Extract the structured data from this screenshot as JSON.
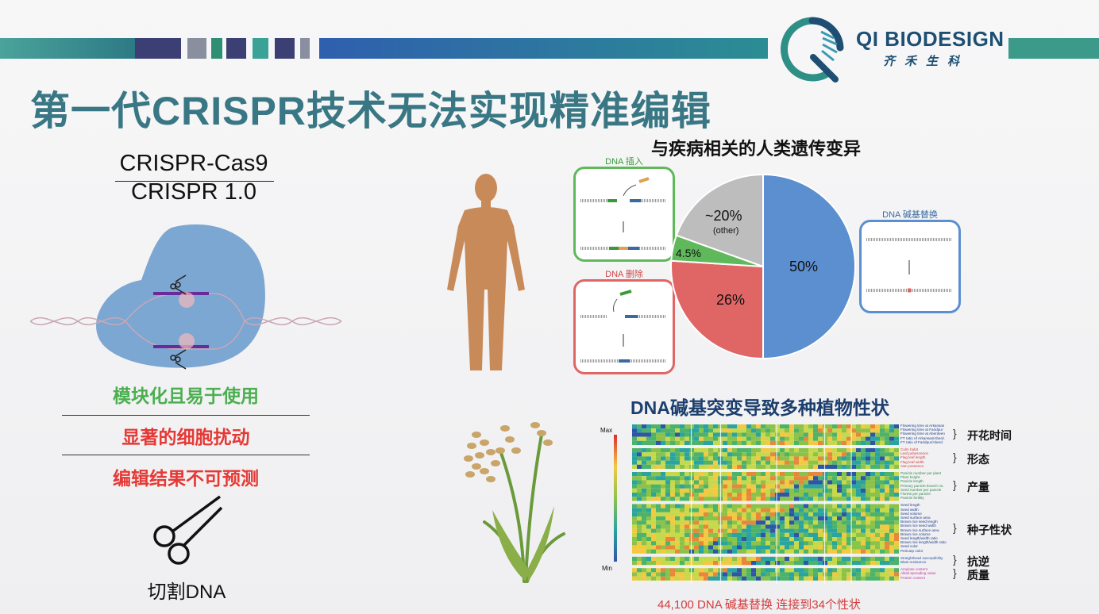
{
  "slide": {
    "title": "第一代CRISPR技术无法实现精准编辑"
  },
  "logo": {
    "name": "QI BIODESIGN",
    "chinese": "齐禾生科"
  },
  "left": {
    "numerator": "CRISPR-Cas9",
    "denominator": "CRISPR 1.0",
    "features": [
      {
        "text": "模块化且易于使用",
        "color": "#4caf50"
      },
      {
        "text": "显著的细胞扰动",
        "color": "#e53935"
      },
      {
        "text": "编辑结果不可预测",
        "color": "#e53935"
      }
    ],
    "scissors_caption": "切割DNA"
  },
  "disease": {
    "title": "与疾病相关的人类遗传变异",
    "insertion_label": "DNA 插入",
    "deletion_label": "DNA 删除",
    "substitution_label": "DNA 碱基替换",
    "colors": {
      "insertion": "#5fb85a",
      "deletion": "#e06666",
      "substitution": "#5b8fd0",
      "other": "#bdbdbd"
    }
  },
  "plant": {
    "title": "DNA碱基突变导致多种植物性状",
    "caption": "44,100 DNA 碱基替换 连接到34个性状",
    "scale_max": "Max",
    "scale_min": "Min",
    "traits": [
      {
        "label": "开花时间",
        "rows": [
          "Flowering time at Arkansas",
          "Flowering time at Faridpur",
          "Flowering time at Aberdeen",
          "FT ratio of Arkansas/Aberd.",
          "FT ratio of Faridpur/Aberd."
        ]
      },
      {
        "label": "形态",
        "rows": [
          "Culm habit",
          "Leaf pubescence",
          "Flag leaf length",
          "Flag leaf width",
          "Awn presence"
        ]
      },
      {
        "label": "产量",
        "rows": [
          "Panicle number per plant",
          "Plant height",
          "Panicle length",
          "Primary panicle branch no.",
          "Seed number per panicle",
          "Florets per panicle",
          "Panicle fertility"
        ]
      },
      {
        "label": "种子性状",
        "rows": [
          "Seed length",
          "Seed width",
          "Seed volume",
          "Seed surface area",
          "Brown rice seed length",
          "Brown rice seed width",
          "Brown rice surface area",
          "Brown rice volume",
          "Seed length/width ratio",
          "Brown rice length/width ratio",
          "Seed color",
          "Pericarp color"
        ]
      },
      {
        "label": "抗逆",
        "rows": [
          "Straighthead susceptibility",
          "Blast resistance"
        ]
      },
      {
        "label": "质量",
        "rows": [
          "Amylose content",
          "Alkali spreading value",
          "Protein content"
        ]
      }
    ]
  },
  "chart_data": {
    "type": "pie",
    "title": "与疾病相关的人类遗传变异",
    "slices": [
      {
        "label": "50%",
        "value": 50,
        "category": "DNA 碱基替换",
        "color": "#5b8fd0"
      },
      {
        "label": "26%",
        "value": 26,
        "category": "DNA 删除",
        "color": "#e06666"
      },
      {
        "label": "4.5%",
        "value": 4.5,
        "category": "DNA 插入",
        "color": "#5fb85a"
      },
      {
        "label": "~20%",
        "sublabel": "(other)",
        "value": 19.5,
        "category": "other",
        "color": "#bdbdbd"
      }
    ]
  }
}
